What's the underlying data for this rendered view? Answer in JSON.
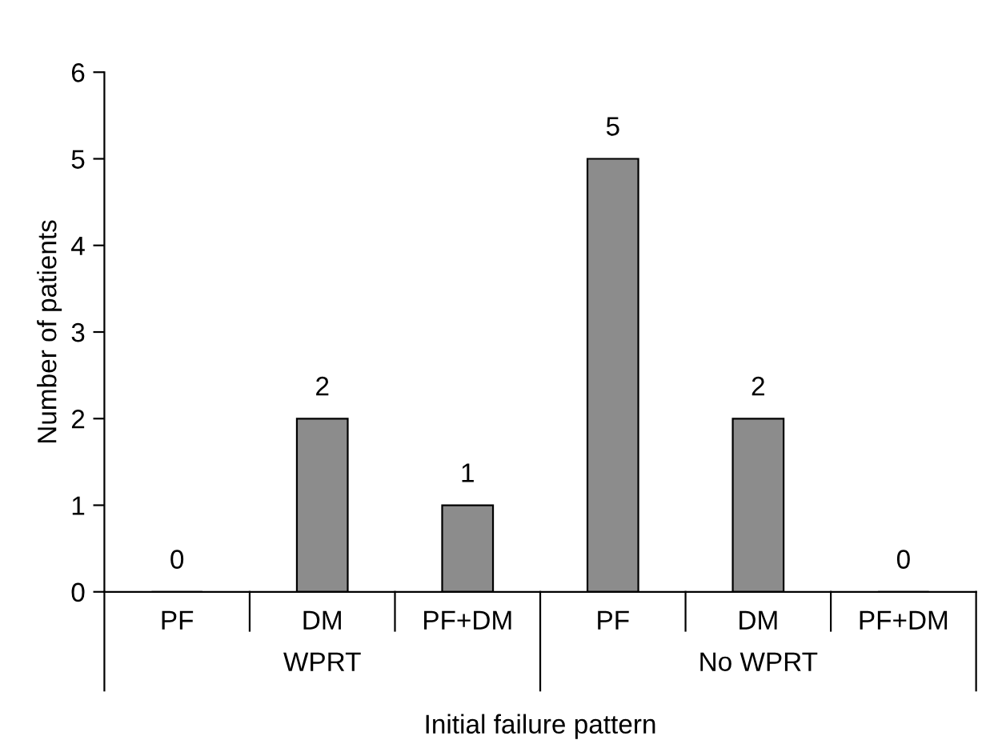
{
  "chart_data": {
    "type": "bar",
    "xlabel": "Initial failure pattern",
    "ylabel": "Number of patients",
    "categories": [
      "PF",
      "DM",
      "PF+DM",
      "PF",
      "DM",
      "PF+DM"
    ],
    "values": [
      0,
      2,
      1,
      5,
      2,
      0
    ],
    "color": "#8c8c8c",
    "ylim": [
      0,
      6
    ],
    "yticks": [
      0,
      1,
      2,
      3,
      4,
      5,
      6
    ],
    "data_labels": true,
    "grid": false,
    "legend": false,
    "annotations": [
      "WPRT",
      "No WPRT"
    ]
  }
}
